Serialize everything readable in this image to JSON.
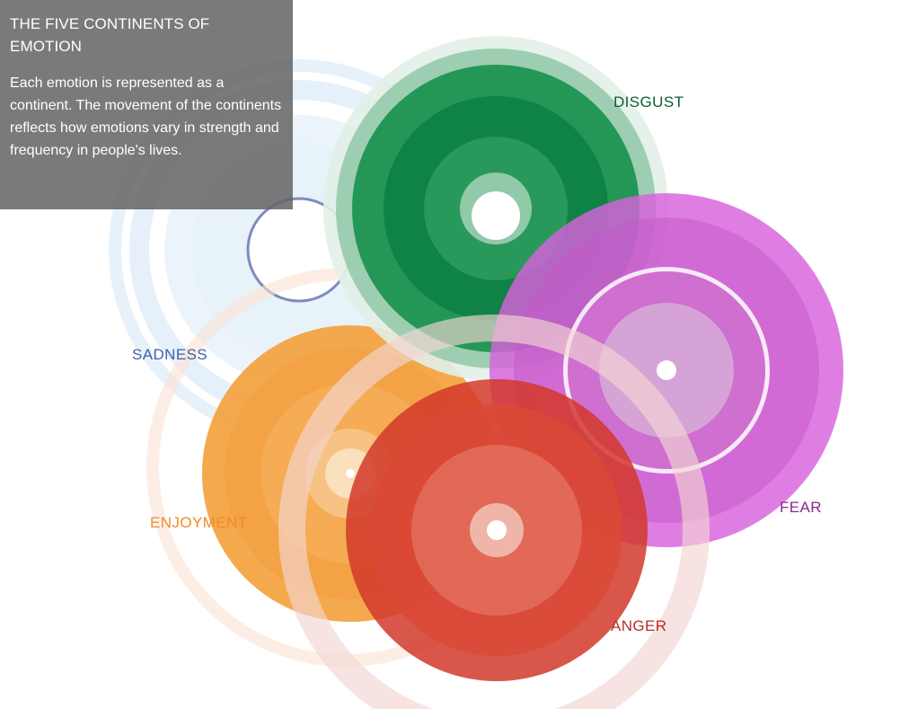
{
  "panel": {
    "title": "THE FIVE CONTINENTS OF EMOTION",
    "description": "Each emotion is represented as a continent. The movement of the continents reflects how emotions vary in strength and frequency in people's lives."
  },
  "colors": {
    "sadness": "#4a6fb5",
    "disgust": "#0e8a47",
    "fear": "#d25fd8",
    "enjoyment": "#f39a2c",
    "anger": "#d13a28",
    "panel_bg": "#666666"
  },
  "continents": [
    {
      "id": "sadness",
      "label": "SADNESS",
      "label_color": "#3f61a8"
    },
    {
      "id": "disgust",
      "label": "DISGUST",
      "label_color": "#0b5f33"
    },
    {
      "id": "fear",
      "label": "FEAR",
      "label_color": "#8a2a8e"
    },
    {
      "id": "enjoyment",
      "label": "ENJOYMENT",
      "label_color": "#f08a28"
    },
    {
      "id": "anger",
      "label": "ANGER",
      "label_color": "#b82c2c"
    }
  ]
}
